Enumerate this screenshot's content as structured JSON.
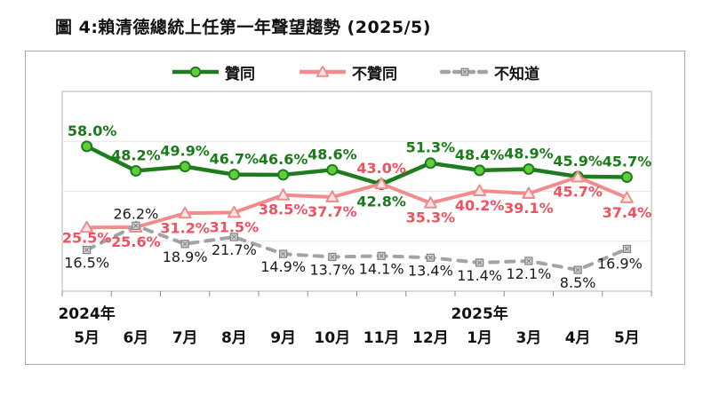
{
  "title": {
    "text": "圖 4:賴清德總統上任第一年聲望趨勢 (2025/5)"
  },
  "chart_data": {
    "type": "line",
    "categories": [
      "5月",
      "6月",
      "7月",
      "8月",
      "9月",
      "10月",
      "11月",
      "12月",
      "1月",
      "3月",
      "4月",
      "5月"
    ],
    "year_labels": [
      {
        "text": "2024年",
        "index": 0
      },
      {
        "text": "2025年",
        "index": 8
      }
    ],
    "ylim": [
      0,
      80
    ],
    "gridlines": [
      20,
      40,
      60
    ],
    "grid": "horizontal-only",
    "legend_position": "top",
    "label_format": "one-decimal-percent",
    "series": [
      {
        "name": "贊同",
        "key": "approve",
        "values": [
          58.0,
          48.2,
          49.9,
          46.7,
          46.6,
          48.6,
          42.8,
          51.3,
          48.4,
          48.9,
          45.9,
          45.7
        ],
        "color": "#1d7d1d",
        "label_color": "#1a7a1a",
        "marker": "circle",
        "marker_fill": "#63cc3a",
        "line_style": "solid"
      },
      {
        "name": "不贊同",
        "key": "disapprove",
        "values": [
          25.5,
          25.6,
          31.2,
          31.5,
          38.5,
          37.7,
          43.0,
          35.3,
          40.2,
          39.1,
          45.7,
          37.4
        ],
        "color": "#f28b8b",
        "label_color": "#f0515f",
        "marker": "triangle",
        "marker_fill": "#fde4e7",
        "line_style": "solid"
      },
      {
        "name": "不知道",
        "key": "unknown",
        "values": [
          16.5,
          26.2,
          18.9,
          21.7,
          14.9,
          13.7,
          14.1,
          13.4,
          11.4,
          12.1,
          8.5,
          16.9
        ],
        "color": "#a3a3a3",
        "label_color": "#1a1a1a",
        "marker": "square-x",
        "marker_fill": "#d4d4d4",
        "line_style": "dashed"
      }
    ]
  }
}
